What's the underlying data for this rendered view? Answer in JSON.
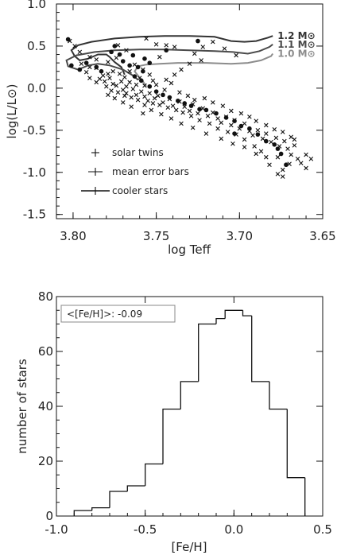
{
  "chart_data": [
    {
      "type": "scatter",
      "xlabel": "log Teff",
      "ylabel": "log(L/L⊙)",
      "xlim": [
        3.81,
        3.65
      ],
      "ylim": [
        -1.55,
        1.0
      ],
      "x_ticks": [
        "3.80",
        "3.75",
        "3.70",
        "3.65"
      ],
      "y_ticks": [
        "1.0",
        "0.5",
        "0.0",
        "-0.5",
        "-1.0",
        "-1.5"
      ],
      "grid": false,
      "legend_position": "bottom-left",
      "legend": [
        "solar twins",
        "mean error bars",
        "cooler stars"
      ],
      "tracks": [
        {
          "label": "1.2 M⊙",
          "color": "#333333",
          "points": [
            [
              3.769,
              0.16
            ],
            [
              3.771,
              0.25
            ],
            [
              3.775,
              0.31
            ],
            [
              3.778,
              0.37
            ],
            [
              3.78,
              0.4
            ],
            [
              3.785,
              0.4
            ],
            [
              3.791,
              0.35
            ],
            [
              3.796,
              0.33
            ],
            [
              3.799,
              0.38
            ],
            [
              3.801,
              0.45
            ],
            [
              3.797,
              0.51
            ],
            [
              3.789,
              0.55
            ],
            [
              3.775,
              0.59
            ],
            [
              3.76,
              0.61
            ],
            [
              3.745,
              0.62
            ],
            [
              3.73,
              0.62
            ],
            [
              3.715,
              0.61
            ],
            [
              3.705,
              0.56
            ],
            [
              3.697,
              0.55
            ],
            [
              3.69,
              0.56
            ],
            [
              3.683,
              0.6
            ],
            [
              3.68,
              0.62
            ]
          ]
        },
        {
          "label": "1.1 M⊙",
          "color": "#4a4a4a",
          "points": [
            [
              3.761,
              0.1
            ],
            [
              3.764,
              0.15
            ],
            [
              3.77,
              0.22
            ],
            [
              3.778,
              0.27
            ],
            [
              3.785,
              0.29
            ],
            [
              3.791,
              0.27
            ],
            [
              3.797,
              0.22
            ],
            [
              3.803,
              0.26
            ],
            [
              3.804,
              0.33
            ],
            [
              3.798,
              0.39
            ],
            [
              3.787,
              0.43
            ],
            [
              3.775,
              0.45
            ],
            [
              3.76,
              0.46
            ],
            [
              3.745,
              0.46
            ],
            [
              3.73,
              0.45
            ],
            [
              3.715,
              0.44
            ],
            [
              3.704,
              0.43
            ],
            [
              3.695,
              0.41
            ],
            [
              3.688,
              0.44
            ],
            [
              3.682,
              0.49
            ],
            [
              3.68,
              0.52
            ]
          ]
        },
        {
          "label": "1.0 M⊙",
          "color": "#8c8c8c",
          "points": [
            [
              3.756,
              0.02
            ],
            [
              3.758,
              0.08
            ],
            [
              3.761,
              0.15
            ],
            [
              3.763,
              0.2
            ],
            [
              3.761,
              0.26
            ],
            [
              3.756,
              0.28
            ],
            [
              3.748,
              0.29
            ],
            [
              3.737,
              0.3
            ],
            [
              3.72,
              0.3
            ],
            [
              3.705,
              0.29
            ],
            [
              3.695,
              0.3
            ],
            [
              3.687,
              0.33
            ],
            [
              3.681,
              0.38
            ],
            [
              3.68,
              0.41
            ]
          ]
        }
      ],
      "series": [
        {
          "name": "solar twins",
          "marker": "cross",
          "points": [
            [
              3.802,
              0.56
            ],
            [
              3.799,
              0.5
            ],
            [
              3.796,
              0.43
            ],
            [
              3.79,
              0.37
            ],
            [
              3.786,
              0.34
            ],
            [
              3.795,
              0.29
            ],
            [
              3.79,
              0.25
            ],
            [
              3.786,
              0.24
            ],
            [
              3.779,
              0.31
            ],
            [
              3.774,
              0.36
            ],
            [
              3.779,
              0.17
            ],
            [
              3.776,
              0.2
            ],
            [
              3.781,
              0.08
            ],
            [
              3.782,
              0.15
            ],
            [
              3.786,
              0.07
            ],
            [
              3.784,
              0.11
            ],
            [
              3.778,
              0.12
            ],
            [
              3.776,
              0.05
            ],
            [
              3.78,
              0.02
            ],
            [
              3.772,
              0.17
            ],
            [
              3.771,
              0.08
            ],
            [
              3.774,
              0.03
            ],
            [
              3.768,
              0.02
            ],
            [
              3.766,
              0.07
            ],
            [
              3.77,
              -0.02
            ],
            [
              3.764,
              -0.01
            ],
            [
              3.762,
              0.04
            ],
            [
              3.768,
              -0.06
            ],
            [
              3.762,
              -0.08
            ],
            [
              3.759,
              -0.04
            ],
            [
              3.757,
              -0.1
            ],
            [
              3.754,
              -0.06
            ],
            [
              3.751,
              -0.12
            ],
            [
              3.755,
              -0.15
            ],
            [
              3.749,
              -0.09
            ],
            [
              3.746,
              -0.17
            ],
            [
              3.742,
              -0.13
            ],
            [
              3.74,
              -0.21
            ],
            [
              3.736,
              -0.16
            ],
            [
              3.733,
              -0.22
            ],
            [
              3.73,
              -0.27
            ],
            [
              3.728,
              -0.19
            ],
            [
              3.725,
              -0.3
            ],
            [
              3.722,
              -0.24
            ],
            [
              3.719,
              -0.33
            ],
            [
              3.716,
              -0.29
            ],
            [
              3.713,
              -0.36
            ],
            [
              3.711,
              -0.41
            ],
            [
              3.708,
              -0.34
            ],
            [
              3.705,
              -0.44
            ],
            [
              3.703,
              -0.38
            ],
            [
              3.7,
              -0.48
            ],
            [
              3.697,
              -0.42
            ],
            [
              3.694,
              -0.51
            ],
            [
              3.692,
              -0.56
            ],
            [
              3.689,
              -0.5
            ],
            [
              3.686,
              -0.6
            ],
            [
              3.684,
              -0.54
            ],
            [
              3.681,
              -0.64
            ],
            [
              3.678,
              -0.59
            ],
            [
              3.676,
              -0.69
            ],
            [
              3.673,
              -0.63
            ],
            [
              3.671,
              -0.72
            ],
            [
              3.669,
              -0.79
            ],
            [
              3.667,
              -0.68
            ],
            [
              3.665,
              -0.84
            ],
            [
              3.663,
              -0.89
            ],
            [
              3.677,
              -0.82
            ],
            [
              3.682,
              -0.91
            ],
            [
              3.674,
              -0.97
            ],
            [
              3.687,
              -0.75
            ],
            [
              3.691,
              -0.69
            ],
            [
              3.697,
              -0.61
            ],
            [
              3.702,
              -0.55
            ],
            [
              3.707,
              -0.52
            ],
            [
              3.713,
              -0.48
            ],
            [
              3.718,
              -0.42
            ],
            [
              3.724,
              -0.38
            ],
            [
              3.729,
              -0.33
            ],
            [
              3.734,
              -0.29
            ],
            [
              3.738,
              -0.26
            ],
            [
              3.743,
              -0.23
            ],
            [
              3.748,
              -0.2
            ],
            [
              3.752,
              -0.18
            ],
            [
              3.757,
              -0.2
            ],
            [
              3.761,
              -0.14
            ],
            [
              3.765,
              -0.11
            ],
            [
              3.769,
              -0.09
            ],
            [
              3.773,
              -0.05
            ],
            [
              3.777,
              -0.03
            ],
            [
              3.748,
              0.37
            ],
            [
              3.744,
              0.51
            ],
            [
              3.75,
              0.52
            ],
            [
              3.756,
              0.59
            ],
            [
              3.773,
              0.51
            ],
            [
              3.768,
              0.45
            ],
            [
              3.739,
              0.49
            ],
            [
              3.727,
              0.41
            ],
            [
              3.722,
              0.49
            ],
            [
              3.716,
              0.55
            ],
            [
              3.709,
              0.47
            ],
            [
              3.702,
              0.39
            ],
            [
              3.723,
              0.33
            ],
            [
              3.73,
              0.29
            ],
            [
              3.735,
              0.22
            ],
            [
              3.739,
              0.16
            ],
            [
              3.744,
              0.1
            ],
            [
              3.75,
              0.04
            ],
            [
              3.745,
              -0.02
            ],
            [
              3.741,
              0.06
            ],
            [
              3.736,
              -0.05
            ],
            [
              3.731,
              -0.09
            ],
            [
              3.727,
              -0.14
            ],
            [
              3.721,
              -0.12
            ],
            [
              3.716,
              -0.17
            ],
            [
              3.71,
              -0.21
            ],
            [
              3.705,
              -0.27
            ],
            [
              3.699,
              -0.3
            ],
            [
              3.694,
              -0.34
            ],
            [
              3.69,
              -0.39
            ],
            [
              3.684,
              -0.44
            ],
            [
              3.679,
              -0.49
            ],
            [
              3.674,
              -0.52
            ],
            [
              3.669,
              -0.58
            ],
            [
              3.667,
              -0.61
            ],
            [
              3.66,
              -0.79
            ],
            [
              3.657,
              -0.84
            ],
            [
              3.67,
              -0.9
            ],
            [
              3.66,
              -0.95
            ],
            [
              3.677,
              -1.02
            ],
            [
              3.674,
              -1.05
            ],
            [
              3.72,
              -0.54
            ],
            [
              3.711,
              -0.6
            ],
            [
              3.704,
              -0.66
            ],
            [
              3.697,
              -0.7
            ],
            [
              3.69,
              -0.78
            ],
            [
              3.684,
              -0.82
            ],
            [
              3.728,
              -0.47
            ],
            [
              3.735,
              -0.42
            ],
            [
              3.741,
              -0.36
            ],
            [
              3.747,
              -0.31
            ],
            [
              3.753,
              -0.26
            ],
            [
              3.758,
              -0.3
            ],
            [
              3.765,
              -0.22
            ],
            [
              3.77,
              -0.17
            ],
            [
              3.775,
              -0.12
            ],
            [
              3.779,
              -0.08
            ],
            [
              3.79,
              0.12
            ],
            [
              3.792,
              0.19
            ],
            [
              3.763,
              0.28
            ],
            [
              3.758,
              0.22
            ],
            [
              3.754,
              0.16
            ],
            [
              3.76,
              0.12
            ],
            [
              3.766,
              0.2
            ],
            [
              3.769,
              0.13
            ],
            [
              3.752,
              0.09
            ],
            [
              3.757,
              0.03
            ]
          ]
        },
        {
          "name": "cooler stars",
          "marker": "dot",
          "points": [
            [
              3.803,
              0.58
            ],
            [
              3.801,
              0.27
            ],
            [
              3.796,
              0.22
            ],
            [
              3.792,
              0.3
            ],
            [
              3.786,
              0.25
            ],
            [
              3.783,
              0.2
            ],
            [
              3.777,
              0.43
            ],
            [
              3.775,
              0.5
            ],
            [
              3.772,
              0.4
            ],
            [
              3.764,
              0.39
            ],
            [
              3.757,
              0.35
            ],
            [
              3.754,
              0.3
            ],
            [
              3.77,
              0.32
            ],
            [
              3.766,
              0.27
            ],
            [
              3.761,
              0.25
            ],
            [
              3.758,
              0.2
            ],
            [
              3.763,
              0.14
            ],
            [
              3.759,
              0.09
            ],
            [
              3.754,
              0.02
            ],
            [
              3.75,
              -0.04
            ],
            [
              3.746,
              -0.08
            ],
            [
              3.742,
              -0.11
            ],
            [
              3.737,
              -0.15
            ],
            [
              3.733,
              -0.18
            ],
            [
              3.729,
              -0.21
            ],
            [
              3.724,
              -0.25
            ],
            [
              3.72,
              -0.26
            ],
            [
              3.714,
              -0.3
            ],
            [
              3.708,
              -0.35
            ],
            [
              3.703,
              -0.39
            ],
            [
              3.699,
              -0.45
            ],
            [
              3.694,
              -0.48
            ],
            [
              3.689,
              -0.55
            ],
            [
              3.684,
              -0.63
            ],
            [
              3.679,
              -0.67
            ],
            [
              3.677,
              -0.72
            ],
            [
              3.675,
              -0.78
            ],
            [
              3.672,
              -0.91
            ],
            [
              3.703,
              -0.54
            ],
            [
              3.744,
              0.45
            ],
            [
              3.725,
              0.56
            ]
          ]
        }
      ]
    },
    {
      "type": "bar",
      "xlabel": "[Fe/H]",
      "ylabel": "number of stars",
      "xlim": [
        -1.0,
        0.5
      ],
      "ylim": [
        0,
        80
      ],
      "x_ticks": [
        "-1.0",
        "-0.5",
        "0.0",
        "0.5"
      ],
      "y_ticks": [
        "0",
        "20",
        "40",
        "60",
        "80"
      ],
      "annotation": "<[Fe/H]>: -0.09",
      "bin_edges": [
        -0.9,
        -0.8,
        -0.7,
        -0.6,
        -0.5,
        -0.4,
        -0.3,
        -0.2,
        -0.1,
        -0.05,
        0.05,
        0.1,
        0.2,
        0.3,
        0.4
      ],
      "values": [
        2,
        3,
        9,
        11,
        19,
        39,
        49,
        70,
        72,
        75,
        73,
        49,
        39,
        14
      ]
    }
  ]
}
